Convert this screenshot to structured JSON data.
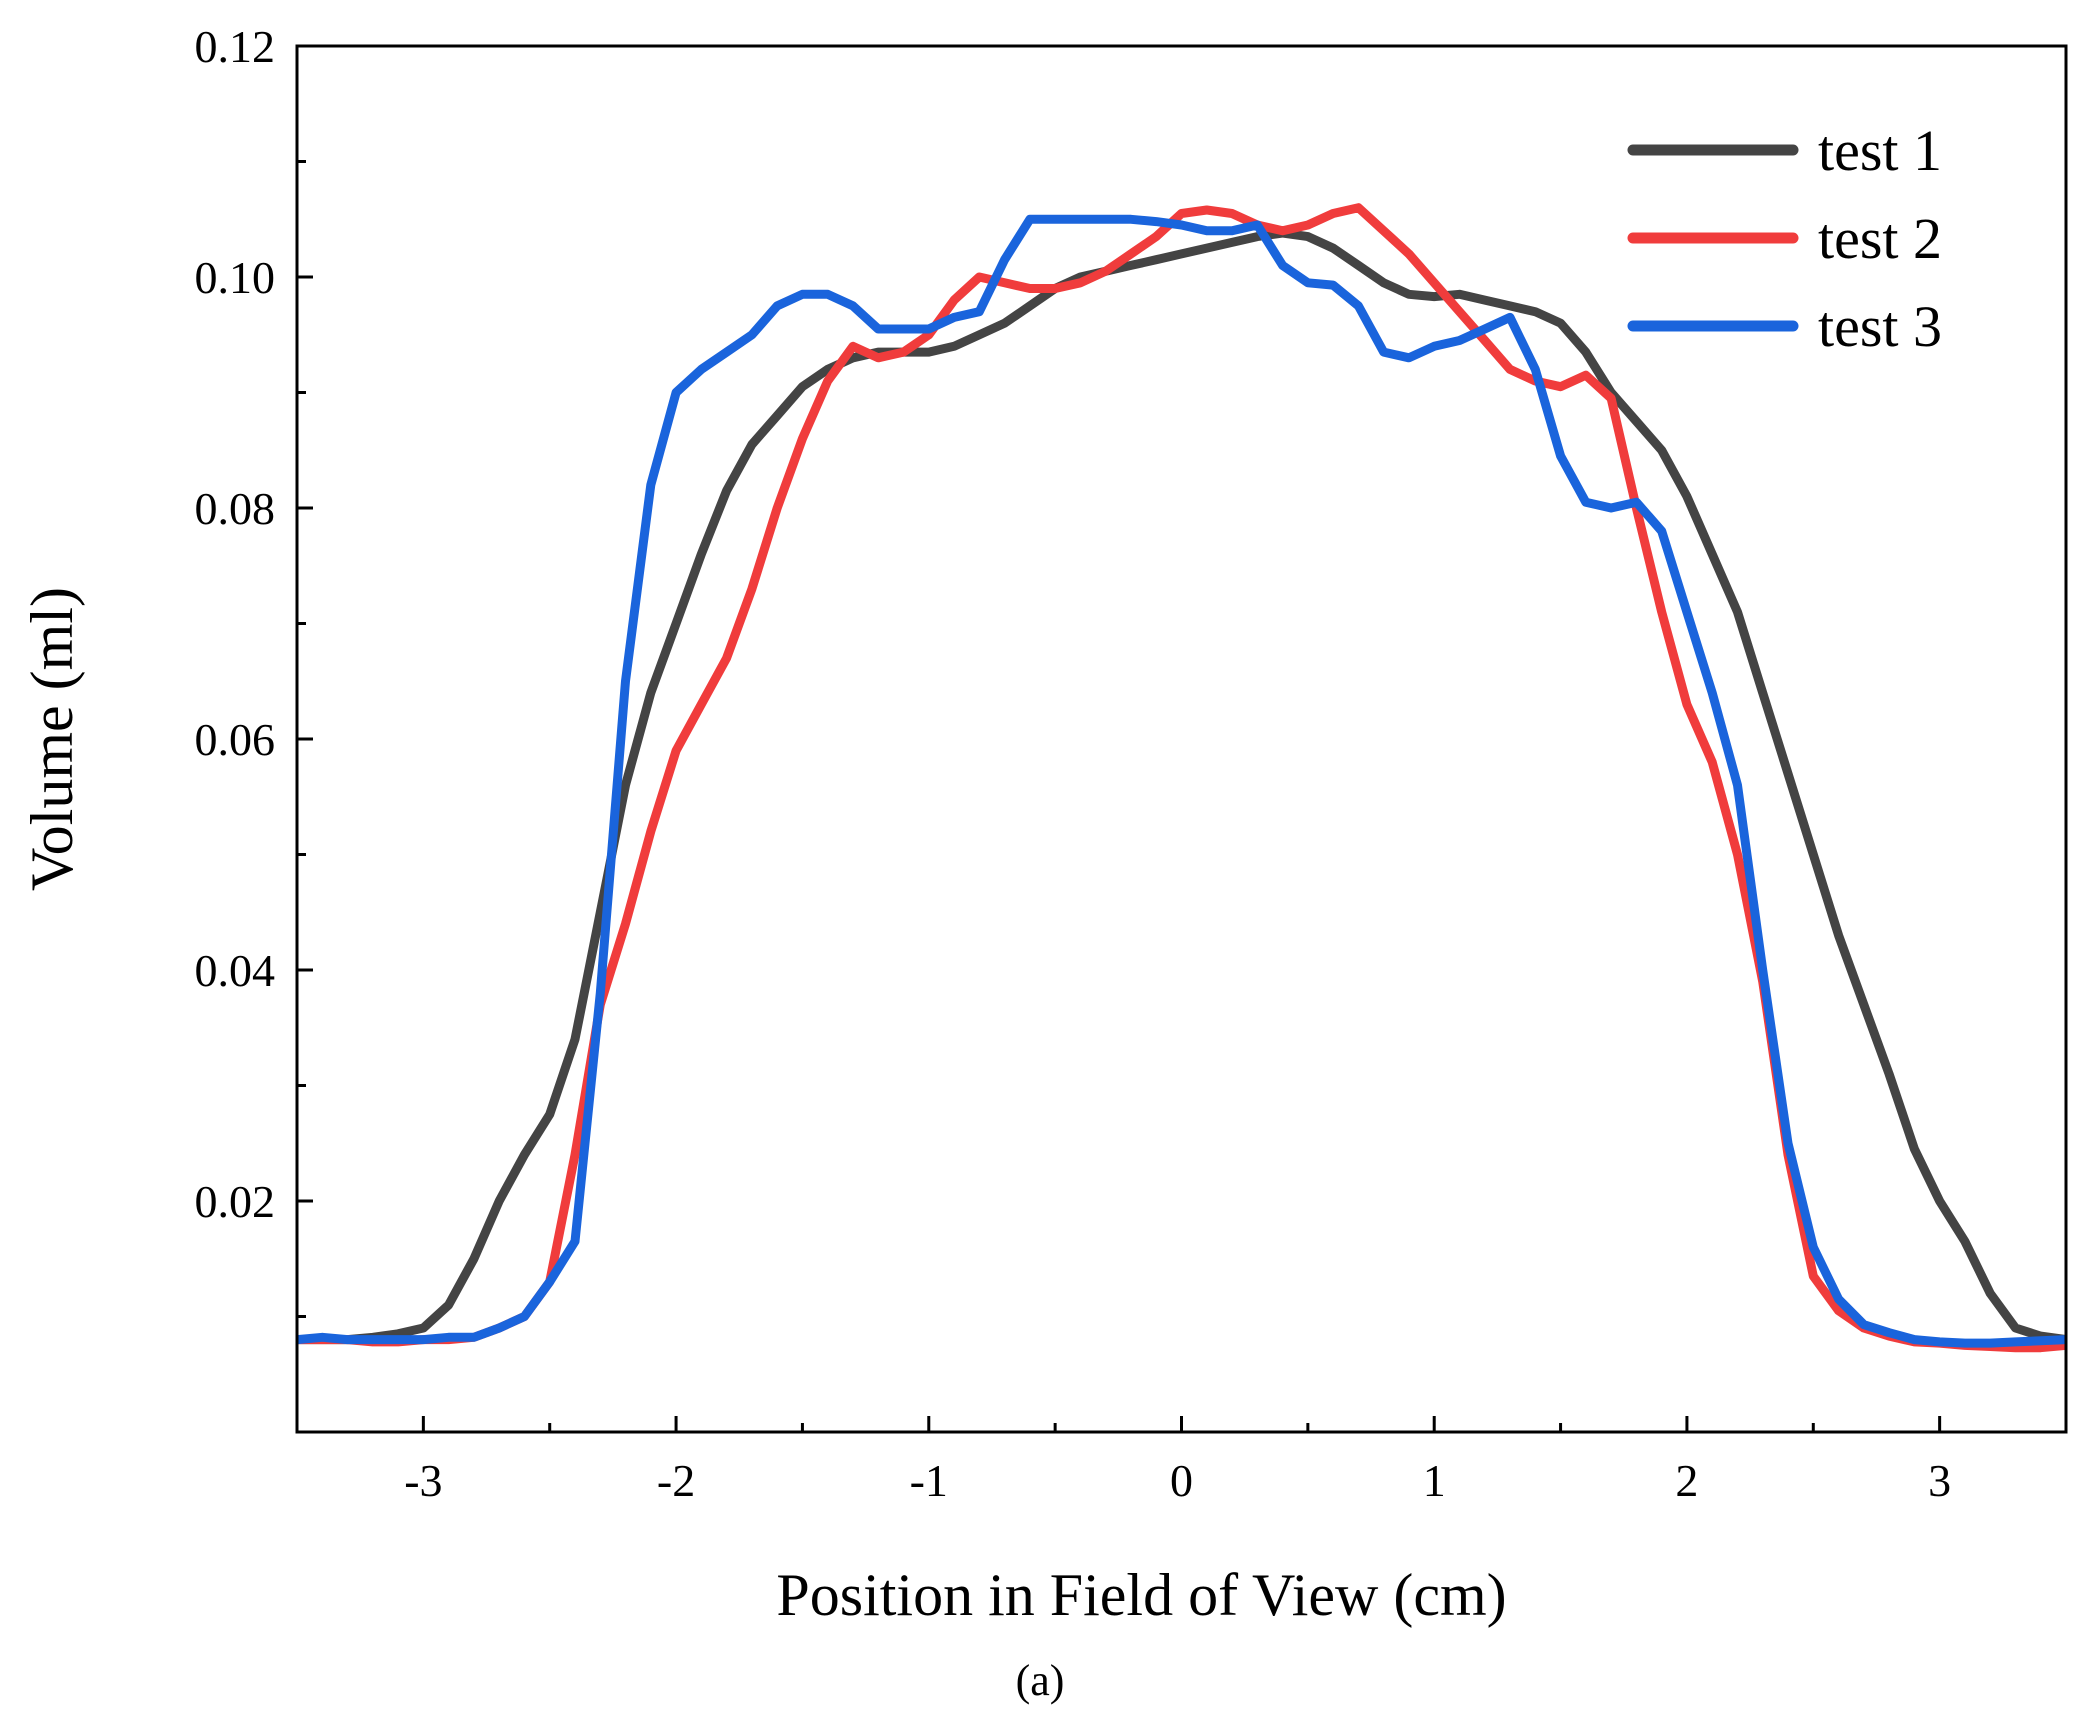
{
  "chart_data": {
    "type": "line",
    "title": "",
    "xlabel": "Position in Field of View (cm)",
    "ylabel": "Volume (ml)",
    "caption": "(a)",
    "xlim": [
      -3.5,
      3.5
    ],
    "ylim": [
      0.0,
      0.12
    ],
    "xticks": [
      -3,
      -2,
      -1,
      0,
      1,
      2,
      3
    ],
    "xtick_labels": [
      "-3",
      "-2",
      "-1",
      "0",
      "1",
      "2",
      "3"
    ],
    "yticks": [
      0.02,
      0.04,
      0.06,
      0.08,
      0.1,
      0.12
    ],
    "ytick_labels": [
      "0.02",
      "0.04",
      "0.06",
      "0.08",
      "0.10",
      "0.12"
    ],
    "grid": false,
    "legend_position": "top-right",
    "series": [
      {
        "name": "test 1",
        "color": "#444444",
        "x": [
          -3.5,
          -3.4,
          -3.3,
          -3.2,
          -3.1,
          -3.0,
          -2.9,
          -2.8,
          -2.7,
          -2.6,
          -2.5,
          -2.4,
          -2.3,
          -2.2,
          -2.1,
          -2.0,
          -1.9,
          -1.8,
          -1.7,
          -1.6,
          -1.5,
          -1.4,
          -1.3,
          -1.2,
          -1.1,
          -1.0,
          -0.9,
          -0.8,
          -0.7,
          -0.6,
          -0.5,
          -0.4,
          -0.3,
          -0.2,
          -0.1,
          0.0,
          0.1,
          0.2,
          0.3,
          0.4,
          0.5,
          0.6,
          0.7,
          0.8,
          0.9,
          1.0,
          1.1,
          1.2,
          1.3,
          1.4,
          1.5,
          1.6,
          1.7,
          1.8,
          1.9,
          2.0,
          2.1,
          2.2,
          2.3,
          2.4,
          2.5,
          2.6,
          2.7,
          2.8,
          2.9,
          3.0,
          3.1,
          3.2,
          3.3,
          3.4,
          3.5
        ],
        "values": [
          0.008,
          0.008,
          0.008,
          0.0082,
          0.0085,
          0.009,
          0.011,
          0.015,
          0.02,
          0.024,
          0.0275,
          0.034,
          0.045,
          0.056,
          0.064,
          0.07,
          0.076,
          0.0815,
          0.0855,
          0.088,
          0.0905,
          0.092,
          0.093,
          0.0935,
          0.0935,
          0.0935,
          0.094,
          0.095,
          0.096,
          0.0975,
          0.099,
          0.1,
          0.1005,
          0.101,
          0.1015,
          0.102,
          0.1025,
          0.103,
          0.1035,
          0.1038,
          0.1035,
          0.1025,
          0.101,
          0.0995,
          0.0985,
          0.0983,
          0.0985,
          0.098,
          0.0975,
          0.097,
          0.096,
          0.0935,
          0.09,
          0.0875,
          0.085,
          0.081,
          0.076,
          0.071,
          0.064,
          0.057,
          0.05,
          0.043,
          0.037,
          0.031,
          0.0245,
          0.02,
          0.0165,
          0.012,
          0.009,
          0.0083,
          0.008
        ]
      },
      {
        "name": "test 2",
        "color": "#f03c3c",
        "x": [
          -3.5,
          -3.4,
          -3.3,
          -3.2,
          -3.1,
          -3.0,
          -2.9,
          -2.8,
          -2.7,
          -2.6,
          -2.5,
          -2.4,
          -2.3,
          -2.2,
          -2.1,
          -2.0,
          -1.9,
          -1.8,
          -1.7,
          -1.6,
          -1.5,
          -1.4,
          -1.3,
          -1.2,
          -1.1,
          -1.0,
          -0.9,
          -0.8,
          -0.7,
          -0.6,
          -0.5,
          -0.4,
          -0.3,
          -0.2,
          -0.1,
          0.0,
          0.1,
          0.2,
          0.3,
          0.4,
          0.5,
          0.6,
          0.7,
          0.8,
          0.9,
          1.0,
          1.1,
          1.2,
          1.3,
          1.4,
          1.5,
          1.6,
          1.7,
          1.8,
          1.9,
          2.0,
          2.1,
          2.2,
          2.3,
          2.4,
          2.5,
          2.6,
          2.7,
          2.8,
          2.9,
          3.0,
          3.1,
          3.2,
          3.3,
          3.4,
          3.5
        ],
        "values": [
          0.008,
          0.008,
          0.008,
          0.0078,
          0.0078,
          0.008,
          0.008,
          0.0082,
          0.009,
          0.01,
          0.013,
          0.024,
          0.037,
          0.044,
          0.052,
          0.059,
          0.063,
          0.067,
          0.073,
          0.08,
          0.086,
          0.091,
          0.094,
          0.093,
          0.0935,
          0.095,
          0.098,
          0.1,
          0.0995,
          0.099,
          0.099,
          0.0995,
          0.1005,
          0.102,
          0.1035,
          0.1055,
          0.1058,
          0.1055,
          0.1045,
          0.104,
          0.1045,
          0.1055,
          0.106,
          0.104,
          0.102,
          0.0995,
          0.097,
          0.0945,
          0.092,
          0.091,
          0.0905,
          0.0915,
          0.0895,
          0.08,
          0.071,
          0.063,
          0.058,
          0.05,
          0.039,
          0.024,
          0.0135,
          0.0105,
          0.009,
          0.0083,
          0.0078,
          0.0077,
          0.0075,
          0.0074,
          0.0073,
          0.0073,
          0.0075
        ]
      },
      {
        "name": "test 3",
        "color": "#1a64dc",
        "x": [
          -3.5,
          -3.4,
          -3.3,
          -3.2,
          -3.1,
          -3.0,
          -2.9,
          -2.8,
          -2.7,
          -2.6,
          -2.5,
          -2.4,
          -2.3,
          -2.2,
          -2.1,
          -2.0,
          -1.9,
          -1.8,
          -1.7,
          -1.6,
          -1.5,
          -1.4,
          -1.3,
          -1.2,
          -1.1,
          -1.0,
          -0.9,
          -0.8,
          -0.7,
          -0.6,
          -0.5,
          -0.4,
          -0.3,
          -0.2,
          -0.1,
          0.0,
          0.1,
          0.2,
          0.3,
          0.4,
          0.5,
          0.6,
          0.7,
          0.8,
          0.9,
          1.0,
          1.1,
          1.2,
          1.3,
          1.4,
          1.5,
          1.6,
          1.7,
          1.8,
          1.9,
          2.0,
          2.1,
          2.2,
          2.3,
          2.4,
          2.5,
          2.6,
          2.7,
          2.8,
          2.9,
          3.0,
          3.1,
          3.2,
          3.3,
          3.4,
          3.5
        ],
        "values": [
          0.008,
          0.0082,
          0.008,
          0.008,
          0.008,
          0.008,
          0.0082,
          0.0082,
          0.009,
          0.01,
          0.013,
          0.0165,
          0.038,
          0.065,
          0.082,
          0.09,
          0.092,
          0.0935,
          0.095,
          0.0975,
          0.0985,
          0.0985,
          0.0975,
          0.0955,
          0.0955,
          0.0955,
          0.0965,
          0.097,
          0.1015,
          0.105,
          0.105,
          0.105,
          0.105,
          0.105,
          0.1048,
          0.1045,
          0.104,
          0.104,
          0.1045,
          0.101,
          0.0995,
          0.0993,
          0.0975,
          0.0935,
          0.093,
          0.094,
          0.0945,
          0.0955,
          0.0965,
          0.092,
          0.0845,
          0.0805,
          0.08,
          0.0805,
          0.078,
          0.071,
          0.064,
          0.056,
          0.04,
          0.025,
          0.016,
          0.0115,
          0.0093,
          0.0086,
          0.008,
          0.0078,
          0.0077,
          0.0077,
          0.0078,
          0.0079,
          0.008
        ]
      }
    ]
  }
}
